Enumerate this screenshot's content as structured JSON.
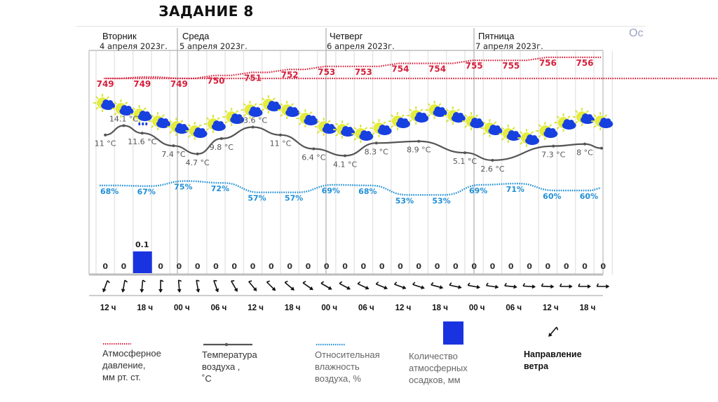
{
  "page": {
    "title": "ЗАДАНИЕ 8",
    "cutoff_text": "Ос"
  },
  "chart_data": {
    "type": "line",
    "title": "",
    "days": [
      {
        "name": "Вторник",
        "date": "4 апреля 2023г."
      },
      {
        "name": "Среда",
        "date": "5 апреля 2023г."
      },
      {
        "name": "Четверг",
        "date": "6 апреля 2023г."
      },
      {
        "name": "Пятница",
        "date": "7 апреля 2023г."
      }
    ],
    "time_labels": [
      "12 ч",
      "18 ч",
      "00 ч",
      "06 ч",
      "12 ч",
      "18 ч",
      "00 ч",
      "06 ч",
      "12 ч",
      "18 ч",
      "00 ч",
      "06 ч",
      "12 ч",
      "18 ч"
    ],
    "columns_per_label": 2,
    "pressure": {
      "name": "Атмосферное давление, мм рт. ст.",
      "color": "#d6203c",
      "values": [
        749,
        749,
        749,
        750,
        751,
        752,
        753,
        753,
        754,
        754,
        755,
        755,
        756,
        756
      ]
    },
    "temperature": {
      "name": "Температура воздуха, °C",
      "color": "#555555",
      "unit": "°C",
      "points": [
        {
          "x": 0.5,
          "v": 11,
          "label": "11 °C"
        },
        {
          "x": 1.5,
          "v": 14.1,
          "label": "14.1 °C"
        },
        {
          "x": 2.5,
          "v": 11.6,
          "label": "11.6 °C"
        },
        {
          "x": 4.2,
          "v": 7.4,
          "label": "7.4 °C"
        },
        {
          "x": 5.5,
          "v": 4.7,
          "label": "4.7 °C"
        },
        {
          "x": 6.8,
          "v": 9.8,
          "label": "9.8 °C"
        },
        {
          "x": 8.5,
          "v": 13.6,
          "label": "13.6 °C"
        },
        {
          "x": 10.0,
          "v": 11,
          "label": "11 °C"
        },
        {
          "x": 11.8,
          "v": 6.4,
          "label": "6.4 °C"
        },
        {
          "x": 13.5,
          "v": 4.1,
          "label": "4.1 °C"
        },
        {
          "x": 15.2,
          "v": 8.3,
          "label": "8.3 °C"
        },
        {
          "x": 17.5,
          "v": 8.9,
          "label": "8.9 °C"
        },
        {
          "x": 20.0,
          "v": 5.1,
          "label": "5.1 °C"
        },
        {
          "x": 21.5,
          "v": 2.6,
          "label": "2.6 °C"
        },
        {
          "x": 24.8,
          "v": 7.3,
          "label": "7.3 °C"
        },
        {
          "x": 26.5,
          "v": 8,
          "label": "8 °C"
        },
        {
          "x": 28.0,
          "v": 6.6,
          "label": ""
        }
      ]
    },
    "humidity": {
      "name": "Относительная влажность воздуха, %",
      "color": "#1f8fd6",
      "values": [
        68,
        67,
        75,
        72,
        57,
        57,
        69,
        68,
        53,
        53,
        69,
        71,
        60,
        60
      ],
      "labels": [
        "68%",
        "67%",
        "75%",
        "72%",
        "57%",
        "57%",
        "69%",
        "68%",
        "53%",
        "53%",
        "69%",
        "71%",
        "60%",
        "60%"
      ]
    },
    "precipitation": {
      "name": "Количество атмосферных осадков, мм",
      "color": "#1a33e0",
      "values": [
        0,
        0,
        0.1,
        0,
        0,
        0,
        0,
        0,
        0,
        0,
        0,
        0,
        0,
        0,
        0,
        0,
        0,
        0,
        0,
        0,
        0,
        0,
        0,
        0,
        0,
        0,
        0,
        0
      ],
      "labels": [
        "0",
        "0",
        "0.1",
        "0",
        "0",
        "0",
        "0",
        "0",
        "0",
        "0",
        "0",
        "0",
        "0",
        "0",
        "0",
        "0",
        "0",
        "0",
        "0",
        "0",
        "0",
        "0",
        "0",
        "0",
        "0",
        "0",
        "0",
        "0"
      ]
    },
    "weather_icons": [
      "sun-cloud",
      "sun-cloud",
      "sun-cloud-rain",
      "sun-cloud",
      "sun-cloud",
      "sun-cloud",
      "sun-cloud",
      "sun-cloud",
      "sun-cloud",
      "sun-cloud",
      "sun-cloud",
      "sun-cloud",
      "sun-cloud",
      "sun-cloud",
      "sun-cloud",
      "sun-cloud",
      "sun-cloud",
      "sun-cloud",
      "sun-cloud",
      "sun-cloud",
      "sun-cloud",
      "sun-cloud",
      "sun-cloud",
      "sun-cloud",
      "sun-cloud",
      "sun-cloud",
      "sun-cloud",
      "sun-cloud"
    ],
    "wind_direction_deg": [
      200,
      190,
      185,
      180,
      175,
      170,
      160,
      150,
      140,
      135,
      130,
      125,
      120,
      118,
      115,
      112,
      110,
      108,
      105,
      102,
      100,
      98,
      96,
      94,
      92,
      90,
      90,
      90
    ],
    "legend": {
      "pressure": [
        "Атмосферное",
        "давление,",
        "мм рт. ст."
      ],
      "temperature": [
        "Температура",
        "воздуха ,",
        "˚С"
      ],
      "humidity": [
        "Относительная",
        "влажность",
        "воздуха, %"
      ],
      "precipitation": [
        "Количество",
        "атмосферных",
        "осадков, мм"
      ],
      "wind": [
        "Направление",
        "ветра"
      ]
    }
  }
}
